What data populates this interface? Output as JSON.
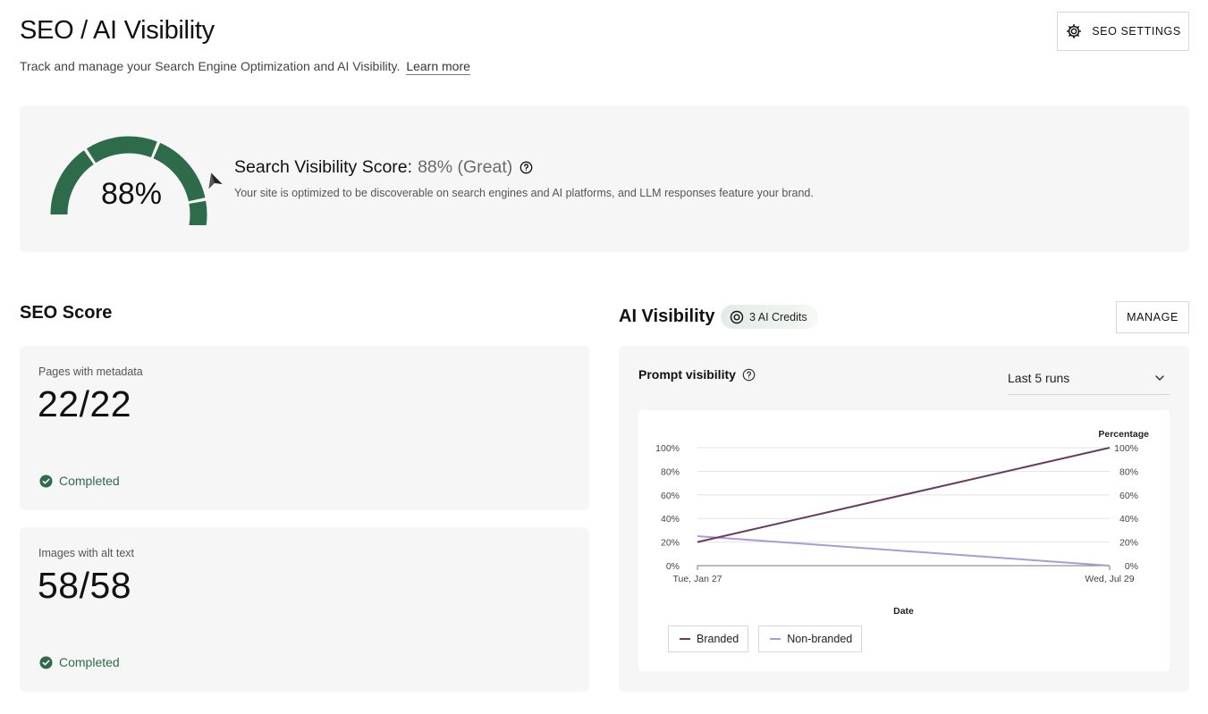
{
  "header": {
    "title": "SEO / AI Visibility",
    "subtitle": "Track and manage your Search Engine Optimization and AI Visibility.",
    "learn_more": "Learn more",
    "settings_button": "SEO SETTINGS"
  },
  "visibility_score": {
    "gauge_value": "88%",
    "gauge_fraction": 0.88,
    "heading_label": "Search Visibility Score:",
    "heading_value": "88% (Great)",
    "description": "Your site is optimized to be discoverable on search engines and AI platforms, and LLM responses feature your brand.",
    "gauge_color": "#2e6b4a",
    "track_color": "#e6e6e6"
  },
  "seo_score": {
    "title": "SEO Score",
    "cards": [
      {
        "label": "Pages with metadata",
        "value": "22/22",
        "status": "Completed"
      },
      {
        "label": "Images with alt text",
        "value": "58/58",
        "status": "Completed"
      }
    ],
    "status_color": "#2e6b4a"
  },
  "ai_visibility": {
    "title": "AI Visibility",
    "credits": "3 AI Credits",
    "manage_button": "MANAGE",
    "prompt_label": "Prompt visibility",
    "runs_selected": "Last 5 runs"
  },
  "chart_data": {
    "type": "line",
    "x": [
      "Tue, Jan 27",
      "Wed, Jul 29"
    ],
    "xlabel": "Date",
    "ylabel": "Percentage",
    "ylim": [
      0,
      100
    ],
    "y_ticks": [
      "0%",
      "20%",
      "40%",
      "60%",
      "80%",
      "100%"
    ],
    "grid": true,
    "legend": "bottom-left",
    "series": [
      {
        "name": "Branded",
        "values": [
          20,
          100
        ],
        "color": "#6b3a5f"
      },
      {
        "name": "Non-branded",
        "values": [
          25,
          0
        ],
        "color": "#a99bd6"
      }
    ]
  }
}
